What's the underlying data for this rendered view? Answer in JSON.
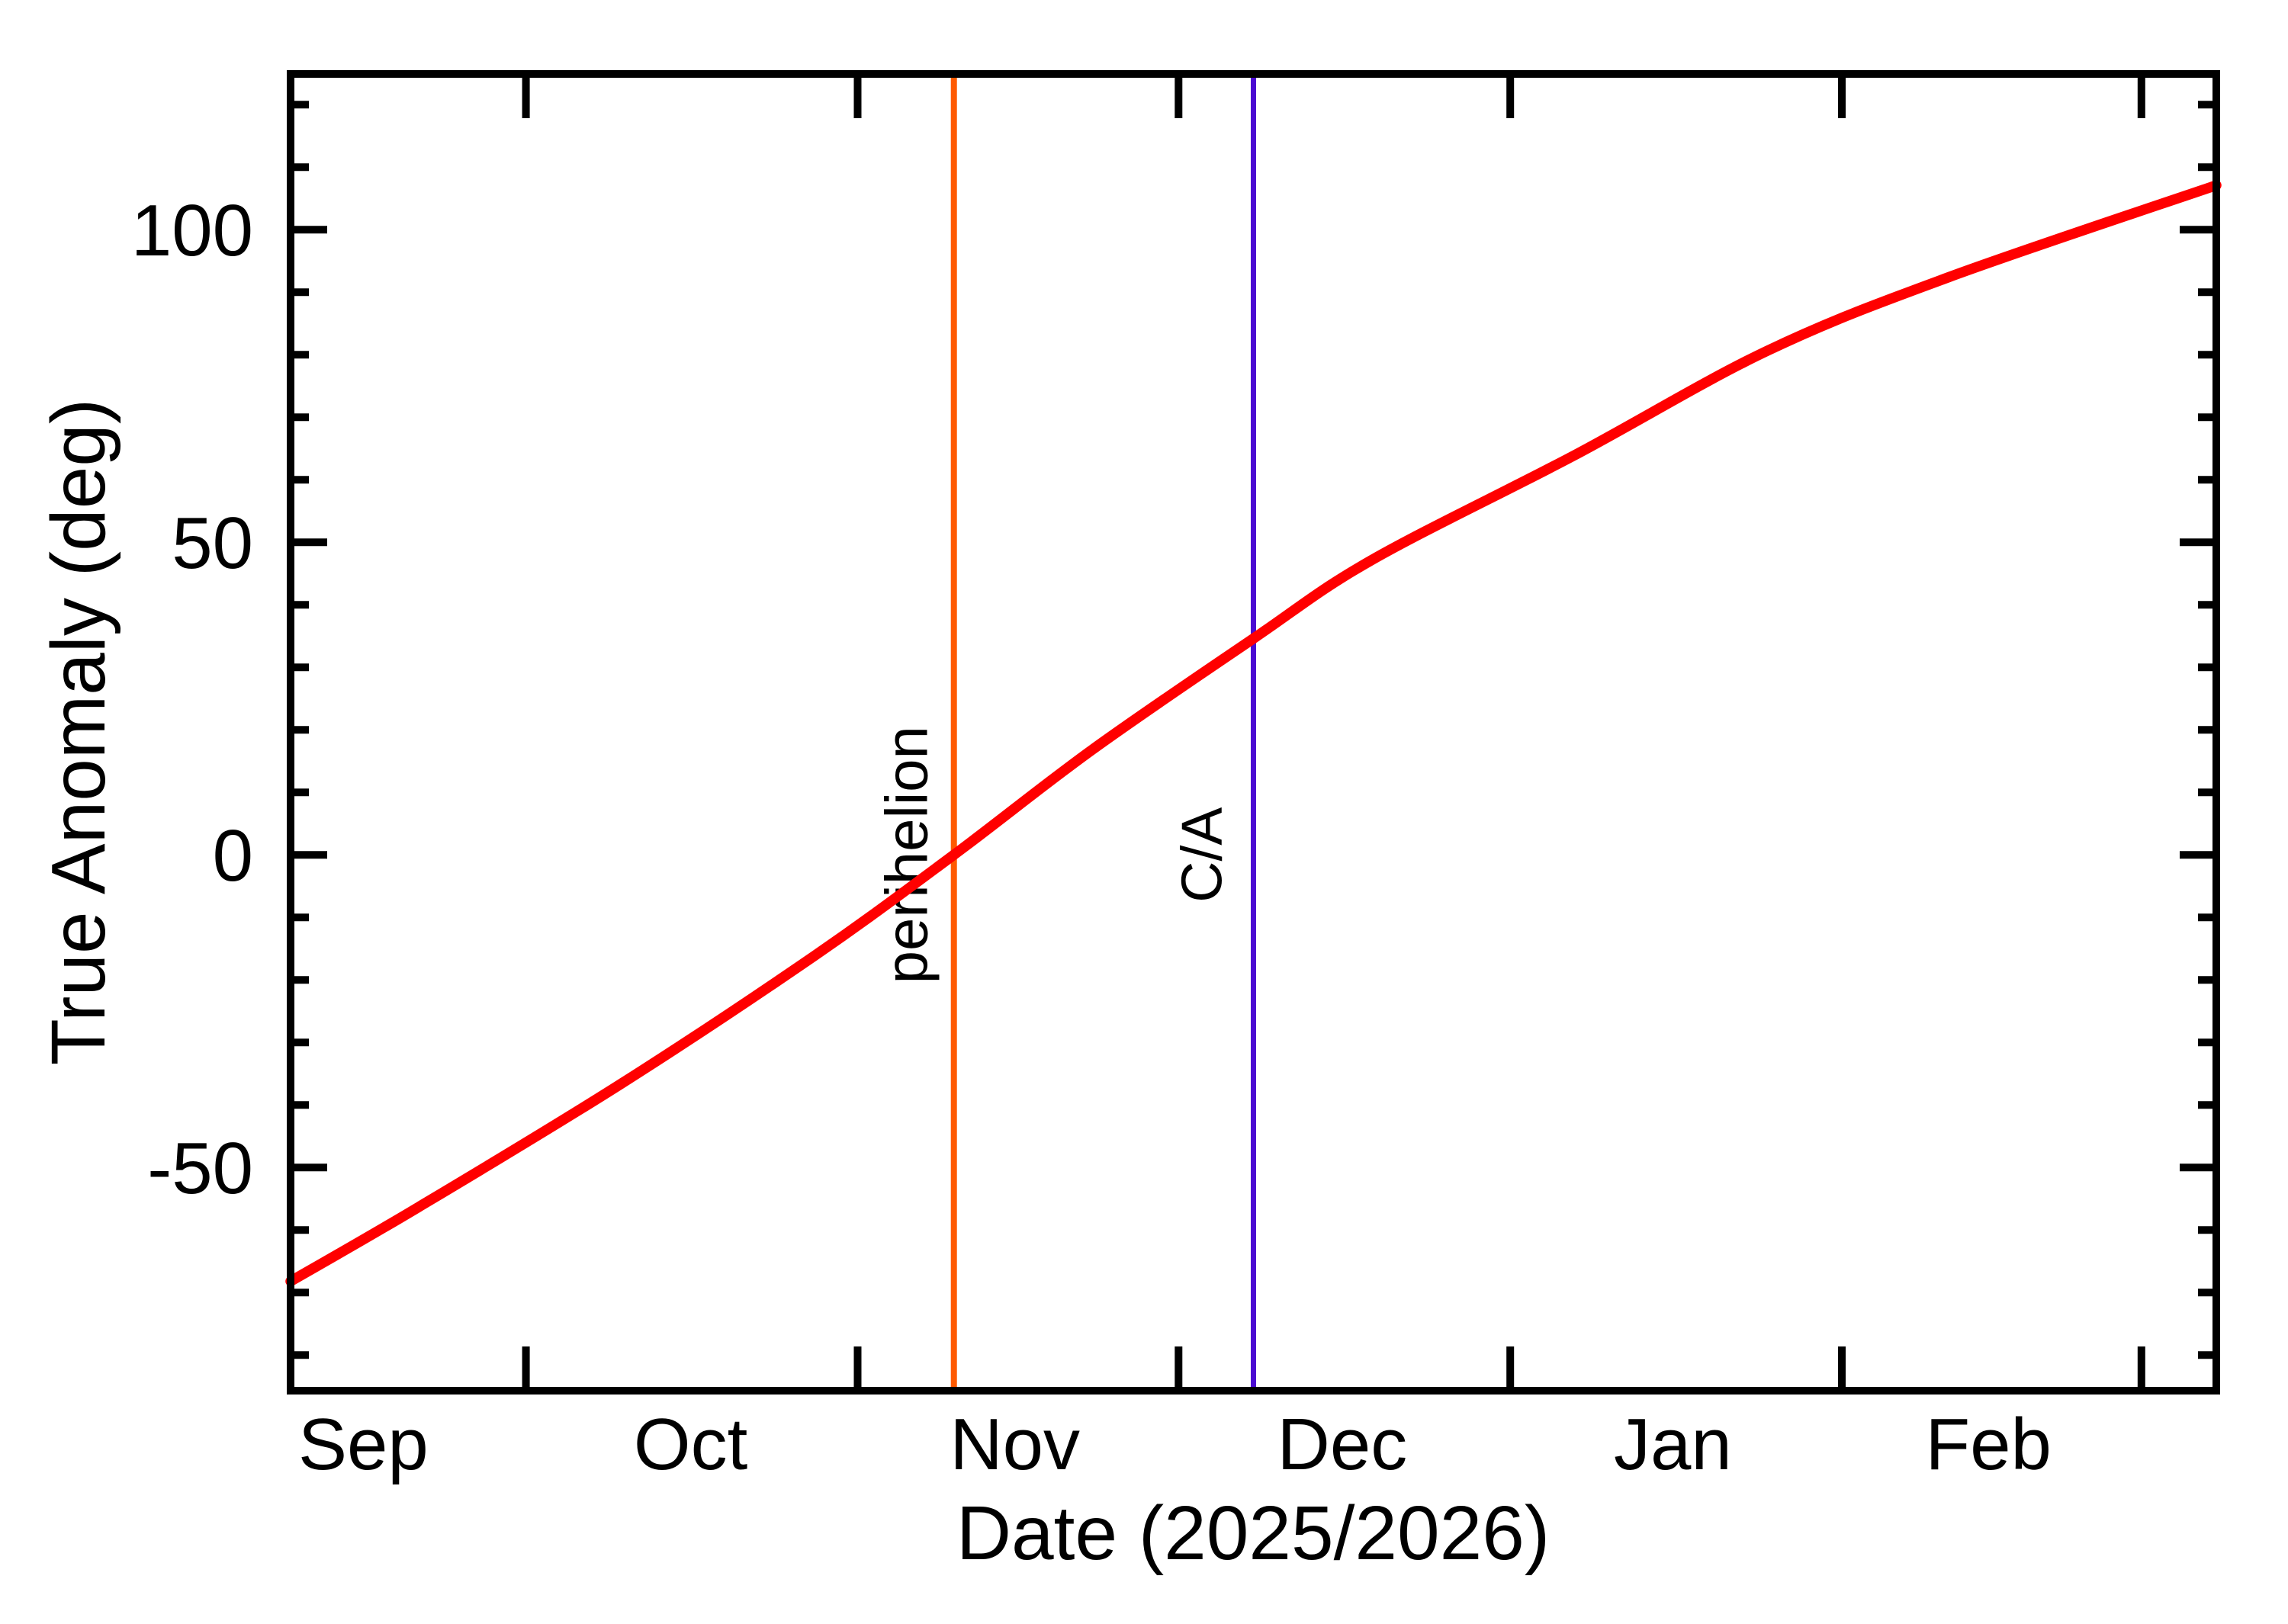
{
  "chart_data": {
    "type": "line",
    "title": "",
    "xlabel": "Date (2025/2026)",
    "ylabel": "True Anomaly (deg)",
    "grid": false,
    "legend": false,
    "background": "#ffffff",
    "frame_color": "#000000",
    "text_color": "#000000",
    "x_axis": {
      "start_date": "2025-09-09",
      "end_date": "2026-03-08",
      "span_days": 180,
      "tick_days": [
        22,
        53,
        83,
        114,
        145,
        173
      ],
      "tick_dates": [
        "2025-10-01",
        "2025-11-01",
        "2025-12-01",
        "2026-01-01",
        "2026-02-01",
        "2026-03-01"
      ],
      "month_labels": [
        {
          "label": "Sep",
          "day": 6.8
        },
        {
          "label": "Oct",
          "day": 37.4
        },
        {
          "label": "Nov",
          "day": 67.7
        },
        {
          "label": "Dec",
          "day": 98.3
        },
        {
          "label": "Jan",
          "day": 129.2
        },
        {
          "label": "Feb",
          "day": 158.7
        }
      ]
    },
    "y_axis": {
      "min": -85.7,
      "max": 124.9,
      "major_ticks": [
        100,
        50,
        0,
        -50
      ],
      "minor_tick_step": 10,
      "unit": "deg"
    },
    "series": [
      {
        "name": "true-anomaly",
        "color": "#ff0000",
        "points": [
          {
            "date": "2025-09-09",
            "day": 0,
            "deg": -68.2
          },
          {
            "date": "2025-09-21",
            "day": 12,
            "deg": -56.3
          },
          {
            "date": "2025-10-10",
            "day": 31,
            "deg": -36.5
          },
          {
            "date": "2025-10-28",
            "day": 49,
            "deg": -16.1
          },
          {
            "date": "2025-11-10",
            "day": 62,
            "deg": 0.0
          },
          {
            "date": "2025-11-23",
            "day": 75,
            "deg": 16.9
          },
          {
            "date": "2025-12-08",
            "day": 90,
            "deg": 34.6
          },
          {
            "date": "2025-12-19",
            "day": 101,
            "deg": 47.1
          },
          {
            "date": "2026-01-07",
            "day": 120,
            "deg": 63.9
          },
          {
            "date": "2026-01-25",
            "day": 138,
            "deg": 80.6
          },
          {
            "date": "2026-02-11",
            "day": 155,
            "deg": 92.4
          },
          {
            "date": "2026-03-08",
            "day": 180,
            "deg": 107.1
          }
        ]
      }
    ],
    "annotations": [
      {
        "id": "perihelion",
        "label": "perihelion",
        "date": "2025-11-10",
        "day": 62,
        "color": "#ff5a00",
        "label_center_deg": 0
      },
      {
        "id": "close-approach",
        "label": "C/A",
        "date": "2025-12-08",
        "day": 90,
        "color": "#4b0bd2",
        "label_center_deg": 0
      }
    ]
  }
}
